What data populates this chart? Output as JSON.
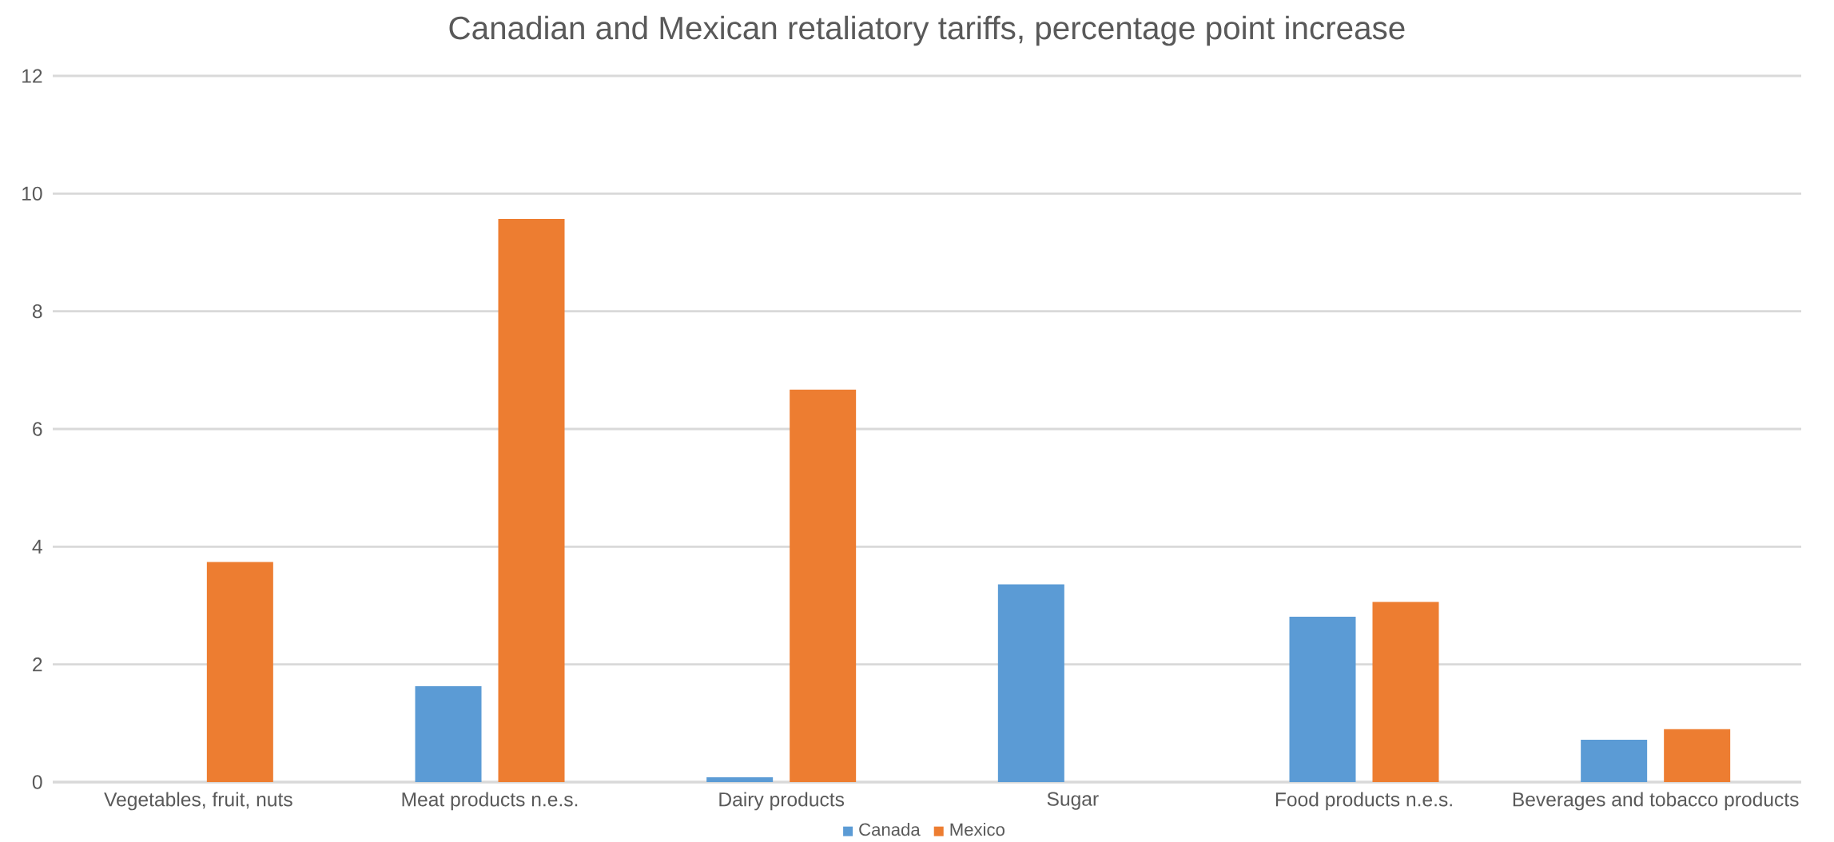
{
  "chart_data": {
    "type": "bar",
    "title": "Canadian and Mexican retaliatory tariffs, percentage point increase",
    "categories": [
      "Vegetables, fruit, nuts",
      "Meat products n.e.s.",
      "Dairy products",
      "Sugar",
      "Food products n.e.s.",
      "Beverages and tobacco products"
    ],
    "series": [
      {
        "name": "Canada",
        "color": "#5b9bd5",
        "values": [
          0,
          1.63,
          0.08,
          3.36,
          2.81,
          0.72
        ]
      },
      {
        "name": "Mexico",
        "color": "#ed7d31",
        "values": [
          3.74,
          9.57,
          6.67,
          0,
          3.06,
          0.9
        ]
      }
    ],
    "ylim": [
      0,
      12
    ],
    "yticks": [
      0,
      2,
      4,
      6,
      8,
      10,
      12
    ],
    "grid": "y",
    "legend": "bottom"
  }
}
